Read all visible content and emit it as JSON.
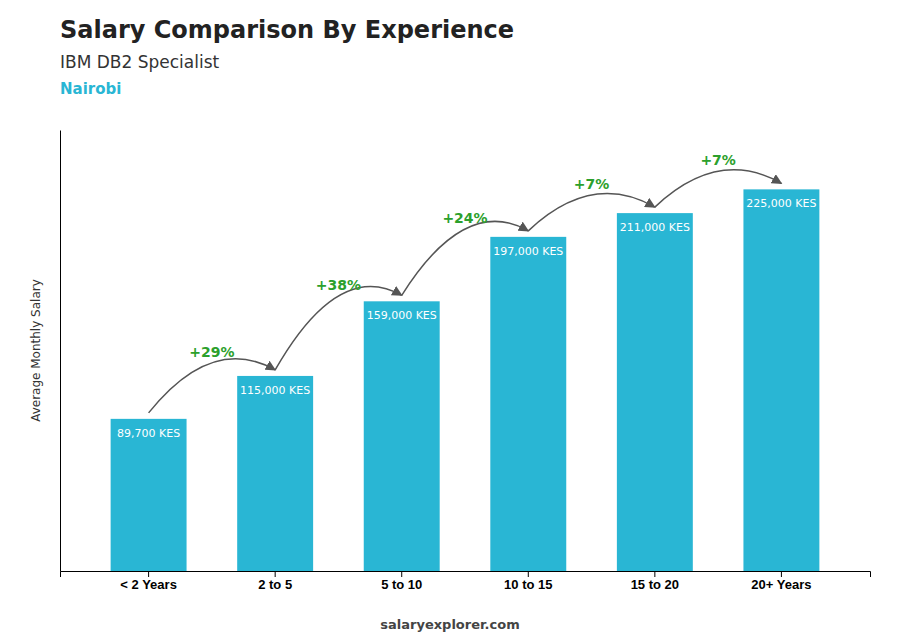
{
  "chart_data": {
    "type": "bar",
    "title": "Salary Comparison By Experience",
    "subtitle": "IBM DB2 Specialist",
    "city": "Nairobi",
    "ylabel": "Average Monthly Salary",
    "footer": "salaryexplorer.com",
    "categories": [
      "< 2 Years",
      "2 to 5",
      "5 to 10",
      "10 to 15",
      "15 to 20",
      "20+ Years"
    ],
    "values": [
      89700,
      115000,
      159000,
      197000,
      211000,
      225000
    ],
    "value_labels": [
      "89,700 KES",
      "115,000 KES",
      "159,000 KES",
      "197,000 KES",
      "211,000 KES",
      "225,000 KES"
    ],
    "data_labels": true,
    "annotations": [
      "+29%",
      "+38%",
      "+24%",
      "+7%",
      "+7%"
    ],
    "color": "#29b6d4",
    "ylim": [
      0,
      260000
    ],
    "tick_labels": "x",
    "grid": false
  }
}
